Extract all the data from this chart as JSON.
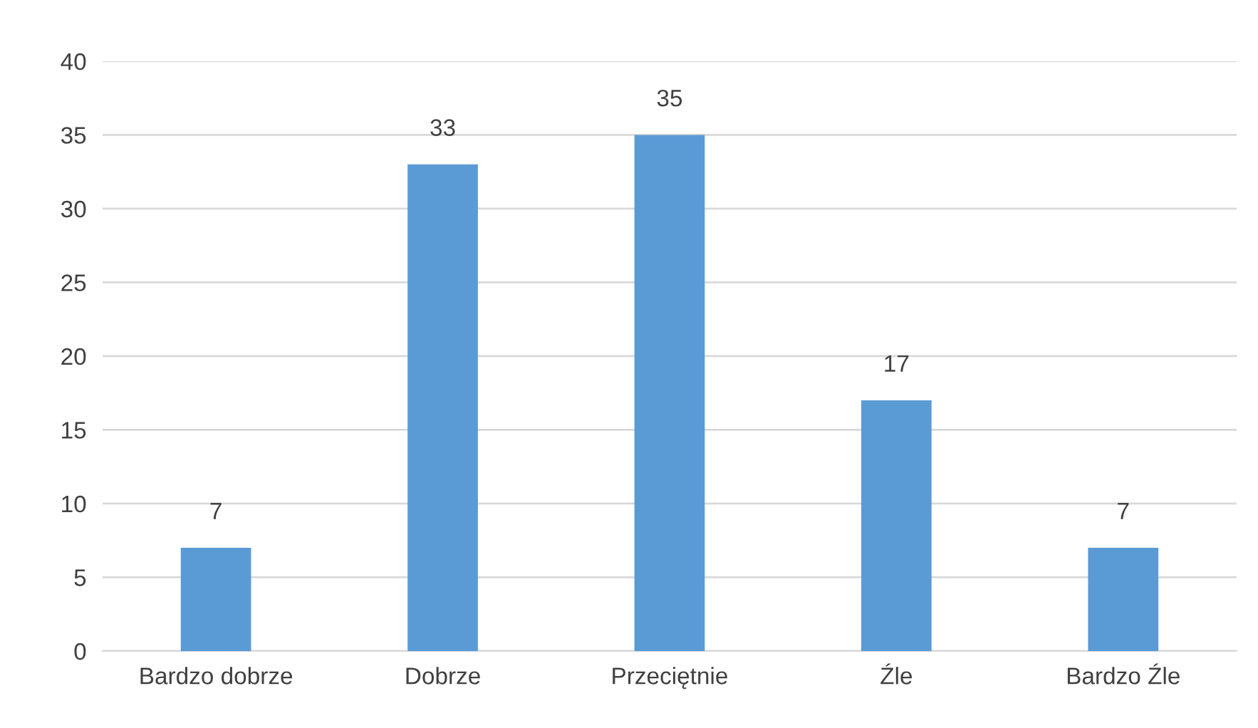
{
  "chart_data": {
    "type": "bar",
    "categories": [
      "Bardzo dobrze",
      "Dobrze",
      "Przeciętnie",
      "Źle",
      "Bardzo Źle"
    ],
    "values": [
      7,
      33,
      35,
      17,
      7
    ],
    "color": "#5b9bd5",
    "ylim": [
      0,
      40
    ],
    "yticks": [
      0,
      5,
      10,
      15,
      20,
      25,
      30,
      35,
      40
    ],
    "grid": "y",
    "data_labels": true
  }
}
